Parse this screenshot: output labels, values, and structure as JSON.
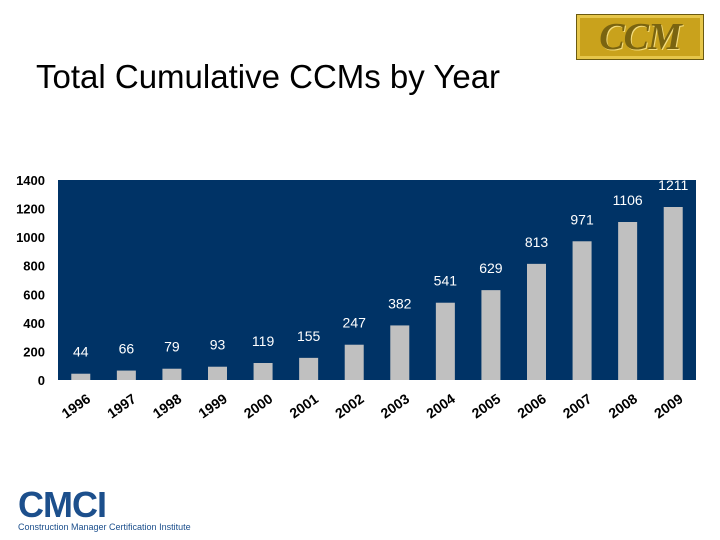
{
  "title": "Total Cumulative CCMs by Year",
  "logos": {
    "ccm": "CCM",
    "cmci": "CMCI",
    "cmci_subtitle": "Construction Manager Certification Institute"
  },
  "colors": {
    "plot_background": "#003366",
    "bar": "#c0c0c0",
    "label": "#ffffff",
    "axis_text": "#000000"
  },
  "chart_data": {
    "type": "bar",
    "title": "Total Cumulative CCMs by Year",
    "xlabel": "",
    "ylabel": "",
    "categories": [
      "1996",
      "1997",
      "1998",
      "1999",
      "2000",
      "2001",
      "2002",
      "2003",
      "2004",
      "2005",
      "2006",
      "2007",
      "2008",
      "2009"
    ],
    "values": [
      44,
      66,
      79,
      93,
      119,
      155,
      247,
      382,
      541,
      629,
      813,
      971,
      1106,
      1211
    ],
    "ylim": [
      0,
      1400
    ],
    "yticks": [
      0,
      200,
      400,
      600,
      800,
      1000,
      1200,
      1400
    ],
    "grid": false,
    "legend": "none",
    "data_labels": true
  }
}
